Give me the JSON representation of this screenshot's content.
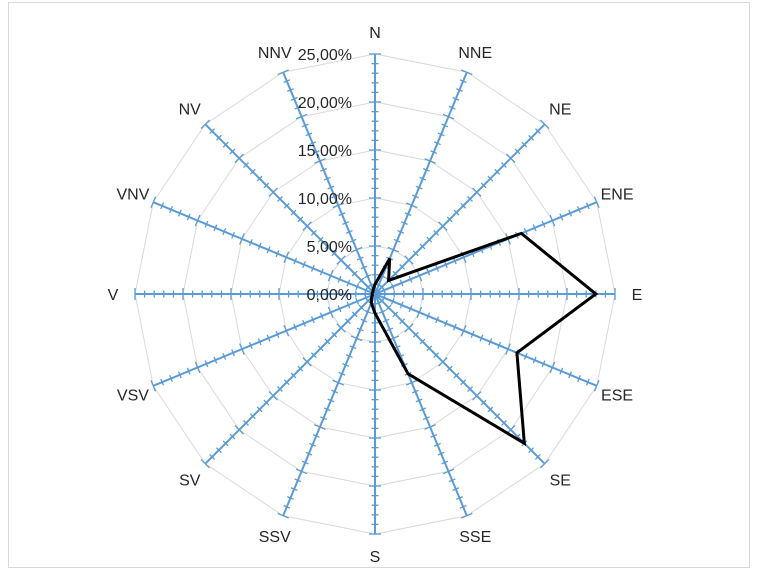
{
  "chart_data": {
    "type": "radar",
    "title": "",
    "directions": [
      "N",
      "NNE",
      "NE",
      "ENE",
      "E",
      "ESE",
      "SE",
      "SSE",
      "S",
      "SSV",
      "SV",
      "VSV",
      "V",
      "VNV",
      "NV",
      "NNV"
    ],
    "series": [
      {
        "values": [
          1.0,
          4.0,
          2.0,
          16.5,
          23.0,
          16.0,
          22.0,
          9.0,
          2.0,
          1.0,
          0.5,
          0.3,
          0.3,
          0.3,
          0.3,
          0.5
        ]
      }
    ],
    "radial_ticks": [
      "0,00%",
      "5,00%",
      "10,00%",
      "15,00%",
      "20,00%",
      "25,00%"
    ],
    "rmin": 0,
    "rmax": 25,
    "grid": true,
    "colors": {
      "grid": "#d9d9d9",
      "axis": "#5b9bd5",
      "series": "#000000",
      "text": "#262626"
    }
  }
}
